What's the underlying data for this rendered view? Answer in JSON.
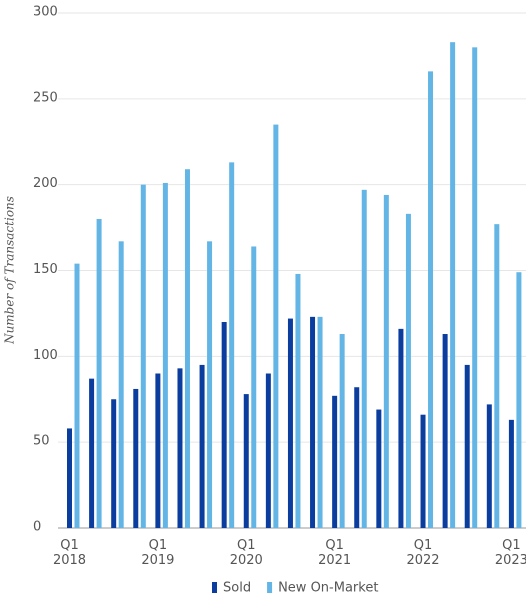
{
  "chart_data": {
    "type": "bar",
    "y_label": "Number of Transactions",
    "categories": [
      "Q1 2018",
      null,
      null,
      null,
      "Q1 2019",
      null,
      null,
      null,
      "Q1 2020",
      null,
      null,
      null,
      "Q1 2021",
      null,
      null,
      null,
      "Q1 2022",
      null,
      null,
      null,
      "Q1 2023"
    ],
    "series": [
      {
        "name": "Sold",
        "color": "#0b3d9e",
        "values": [
          58,
          87,
          75,
          81,
          90,
          93,
          95,
          120,
          78,
          90,
          122,
          123,
          77,
          82,
          69,
          116,
          66,
          113,
          95,
          72,
          63
        ]
      },
      {
        "name": "New On-Market",
        "color": "#63b5e5",
        "values": [
          154,
          180,
          167,
          200,
          201,
          209,
          167,
          213,
          164,
          235,
          148,
          123,
          113,
          197,
          194,
          183,
          266,
          283,
          280,
          177,
          149
        ]
      }
    ],
    "ylim": [
      0,
      300
    ],
    "yticks": [
      0,
      50,
      100,
      150,
      200,
      250,
      300
    ],
    "grid": true
  }
}
